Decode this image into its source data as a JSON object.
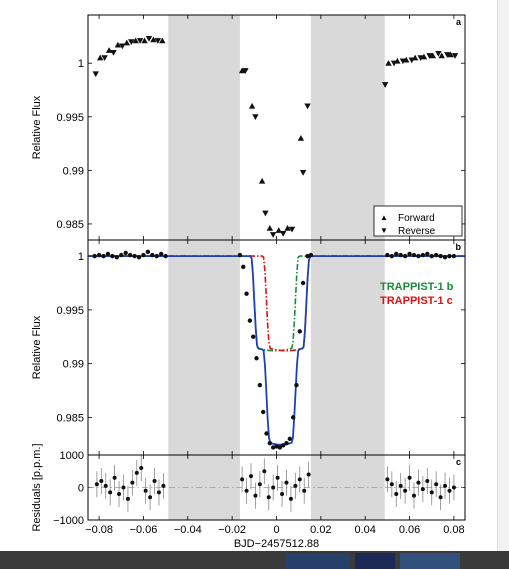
{
  "chart_data": [
    {
      "panel": "a",
      "type": "scatter",
      "ylabel": "Relative Flux",
      "xlim": [
        -0.085,
        0.085
      ],
      "ylim": [
        0.9835,
        1.0045
      ],
      "yticks": [
        0.985,
        0.99,
        0.995,
        1
      ],
      "ytick_labels": [
        "0.985",
        "0.99",
        "0.995",
        "1"
      ],
      "shaded_x": [
        [
          -0.0488,
          -0.0165
        ],
        [
          0.0155,
          0.0488
        ]
      ],
      "legend": {
        "placement": "bottom-right",
        "entries": [
          {
            "marker": "▲",
            "label": "Forward"
          },
          {
            "marker": "▼",
            "label": "Reverse"
          }
        ]
      },
      "series": [
        {
          "name": "Forward",
          "marker": "up",
          "points": [
            [
              -0.0795,
              1.0005
            ],
            [
              -0.0755,
              1.0012
            ],
            [
              -0.0715,
              1.0017
            ],
            [
              -0.0675,
              1.0019
            ],
            [
              -0.0635,
              1.0021
            ],
            [
              -0.0595,
              1.0021
            ],
            [
              -0.0555,
              1.0022
            ],
            [
              -0.0515,
              1.0021
            ],
            [
              -0.0155,
              0.9993
            ],
            [
              -0.011,
              0.996
            ],
            [
              -0.0065,
              0.989
            ],
            [
              -0.003,
              0.9846
            ],
            [
              0.001,
              0.9844
            ],
            [
              0.005,
              0.9846
            ],
            [
              0.011,
              0.993
            ],
            [
              0.0505,
              1.0
            ],
            [
              0.0545,
              1.0002
            ],
            [
              0.0585,
              1.0003
            ],
            [
              0.0625,
              1.0005
            ],
            [
              0.0665,
              1.0006
            ],
            [
              0.0705,
              1.0007
            ],
            [
              0.0745,
              1.0007
            ],
            [
              0.0785,
              1.0008
            ]
          ]
        },
        {
          "name": "Reverse",
          "marker": "down",
          "points": [
            [
              -0.0815,
              0.999
            ],
            [
              -0.0775,
              1.0005
            ],
            [
              -0.0735,
              1.001
            ],
            [
              -0.0695,
              1.0016
            ],
            [
              -0.0655,
              1.002
            ],
            [
              -0.0615,
              1.0021
            ],
            [
              -0.0575,
              1.0023
            ],
            [
              -0.0535,
              1.0021
            ],
            [
              -0.014,
              0.9993
            ],
            [
              -0.0095,
              0.995
            ],
            [
              -0.005,
              0.986
            ],
            [
              -0.0015,
              0.984
            ],
            [
              0.003,
              0.9841
            ],
            [
              0.007,
              0.9845
            ],
            [
              0.012,
              0.9898
            ],
            [
              0.014,
              0.996
            ],
            [
              0.049,
              0.998
            ],
            [
              0.053,
              1.0
            ],
            [
              0.057,
              1.0002
            ],
            [
              0.061,
              1.0003
            ],
            [
              0.065,
              1.0005
            ],
            [
              0.069,
              1.0007
            ],
            [
              0.073,
              1.0009
            ],
            [
              0.077,
              1.0008
            ],
            [
              0.0805,
              1.0007
            ]
          ]
        }
      ]
    },
    {
      "panel": "b",
      "type": "scatter",
      "ylabel": "Relative Flux",
      "xlim": [
        -0.085,
        0.085
      ],
      "ylim": [
        0.9815,
        1.0015
      ],
      "yticks": [
        0.985,
        0.99,
        0.995,
        1
      ],
      "ytick_labels": [
        "0.985",
        "0.99",
        "0.995",
        "1"
      ],
      "shaded_x": [
        [
          -0.0488,
          -0.0165
        ],
        [
          0.0155,
          0.0488
        ]
      ],
      "legend": {
        "placement": "right",
        "entries": [
          {
            "label": "TRAPPIST-1 b",
            "color": "#1a8a3a"
          },
          {
            "label": "TRAPPIST-1 c",
            "color": "#e01010"
          }
        ]
      },
      "points": [
        [
          -0.082,
          1.0
        ],
        [
          -0.08,
          1.0001
        ],
        [
          -0.078,
          1.0
        ],
        [
          -0.076,
          1.0002
        ],
        [
          -0.074,
          1.0
        ],
        [
          -0.072,
          0.9999
        ],
        [
          -0.07,
          1.0001
        ],
        [
          -0.068,
          1.0003
        ],
        [
          -0.066,
          1.0001
        ],
        [
          -0.064,
          1.0
        ],
        [
          -0.062,
          0.9999
        ],
        [
          -0.06,
          1.0001
        ],
        [
          -0.058,
          1.0004
        ],
        [
          -0.056,
          1.0001
        ],
        [
          -0.054,
          1.0
        ],
        [
          -0.052,
          1.0002
        ],
        [
          -0.05,
          1.0
        ],
        [
          -0.0165,
          1.0001
        ],
        [
          -0.015,
          0.999
        ],
        [
          -0.0135,
          0.9965
        ],
        [
          -0.012,
          0.994
        ],
        [
          -0.0105,
          0.9925
        ],
        [
          -0.009,
          0.9905
        ],
        [
          -0.0075,
          0.988
        ],
        [
          -0.006,
          0.9855
        ],
        [
          -0.0045,
          0.9835
        ],
        [
          -0.003,
          0.9826
        ],
        [
          -0.0015,
          0.9822
        ],
        [
          0.0,
          0.9823
        ],
        [
          0.0015,
          0.9822
        ],
        [
          0.003,
          0.9824
        ],
        [
          0.0045,
          0.9826
        ],
        [
          0.006,
          0.983
        ],
        [
          0.0075,
          0.985
        ],
        [
          0.009,
          0.988
        ],
        [
          0.0105,
          0.993
        ],
        [
          0.012,
          0.9975
        ],
        [
          0.014,
          1.0
        ],
        [
          0.0155,
          1.0001
        ],
        [
          0.05,
          1.0001
        ],
        [
          0.052,
          1.0
        ],
        [
          0.054,
          1.0002
        ],
        [
          0.056,
          1.0001
        ],
        [
          0.058,
          1.0
        ],
        [
          0.06,
          1.0002
        ],
        [
          0.062,
          1.0001
        ],
        [
          0.064,
          1.0
        ],
        [
          0.066,
          1.0001
        ],
        [
          0.068,
          1.0002
        ],
        [
          0.07,
          1.0
        ],
        [
          0.072,
          1.0001
        ],
        [
          0.074,
          1.0
        ],
        [
          0.076,
          0.9999
        ],
        [
          0.078,
          1.0
        ],
        [
          0.08,
          1.0
        ]
      ],
      "lines": [
        {
          "name": "TRAPPIST-1 b",
          "color": "#1a8a3a",
          "dash": "dashdot",
          "ingress": -0.0115,
          "egress": 0.01,
          "depth": 0.0088
        },
        {
          "name": "TRAPPIST-1 c",
          "color": "#e01010",
          "dash": "dashdot",
          "ingress": -0.006,
          "egress": 0.015,
          "depth": 0.0088
        },
        {
          "name": "combined",
          "color": "#2040b0",
          "dash": "solid"
        }
      ]
    },
    {
      "panel": "c",
      "type": "scatter",
      "ylabel": "Residuals [p.p.m.]",
      "xlabel": "BJD−2457512.88",
      "xlim": [
        -0.085,
        0.085
      ],
      "ylim": [
        -1000,
        1000
      ],
      "yticks": [
        -1000,
        0,
        1000
      ],
      "ytick_labels": [
        "−1000",
        "0",
        "1000"
      ],
      "xticks": [
        -0.08,
        -0.06,
        -0.04,
        -0.02,
        0,
        0.02,
        0.04,
        0.06,
        0.08
      ],
      "xtick_labels": [
        "−0.08",
        "−0.06",
        "−0.04",
        "−0.02",
        "0",
        "0.02",
        "0.04",
        "0.06",
        "0.08"
      ],
      "shaded_x": [
        [
          -0.0488,
          -0.0165
        ],
        [
          0.0155,
          0.0488
        ]
      ],
      "error": 400,
      "points": [
        [
          -0.081,
          100
        ],
        [
          -0.079,
          200
        ],
        [
          -0.077,
          50
        ],
        [
          -0.075,
          -150
        ],
        [
          -0.073,
          300
        ],
        [
          -0.071,
          -200
        ],
        [
          -0.069,
          0
        ],
        [
          -0.067,
          -350
        ],
        [
          -0.065,
          150
        ],
        [
          -0.063,
          450
        ],
        [
          -0.061,
          600
        ],
        [
          -0.059,
          -100
        ],
        [
          -0.057,
          -300
        ],
        [
          -0.055,
          200
        ],
        [
          -0.053,
          -150
        ],
        [
          -0.051,
          50
        ],
        [
          -0.0155,
          250
        ],
        [
          -0.0135,
          -100
        ],
        [
          -0.0115,
          350
        ],
        [
          -0.0095,
          -250
        ],
        [
          -0.0075,
          100
        ],
        [
          -0.0055,
          500
        ],
        [
          -0.0035,
          -300
        ],
        [
          -0.0015,
          0
        ],
        [
          0.0005,
          300
        ],
        [
          0.0025,
          -200
        ],
        [
          0.0045,
          150
        ],
        [
          0.0065,
          -350
        ],
        [
          0.0085,
          50
        ],
        [
          0.0105,
          250
        ],
        [
          0.0125,
          -100
        ],
        [
          0.0145,
          400
        ],
        [
          0.05,
          250
        ],
        [
          0.052,
          100
        ],
        [
          0.054,
          -200
        ],
        [
          0.056,
          50
        ],
        [
          0.058,
          -100
        ],
        [
          0.06,
          300
        ],
        [
          0.062,
          -250
        ],
        [
          0.064,
          150
        ],
        [
          0.066,
          -50
        ],
        [
          0.068,
          200
        ],
        [
          0.07,
          -150
        ],
        [
          0.072,
          100
        ],
        [
          0.074,
          -300
        ],
        [
          0.076,
          50
        ],
        [
          0.078,
          -100
        ],
        [
          0.08,
          0
        ]
      ]
    }
  ],
  "colors": {
    "shade": "#d9d9d9",
    "points": "#111111",
    "model": "#2040b0"
  }
}
